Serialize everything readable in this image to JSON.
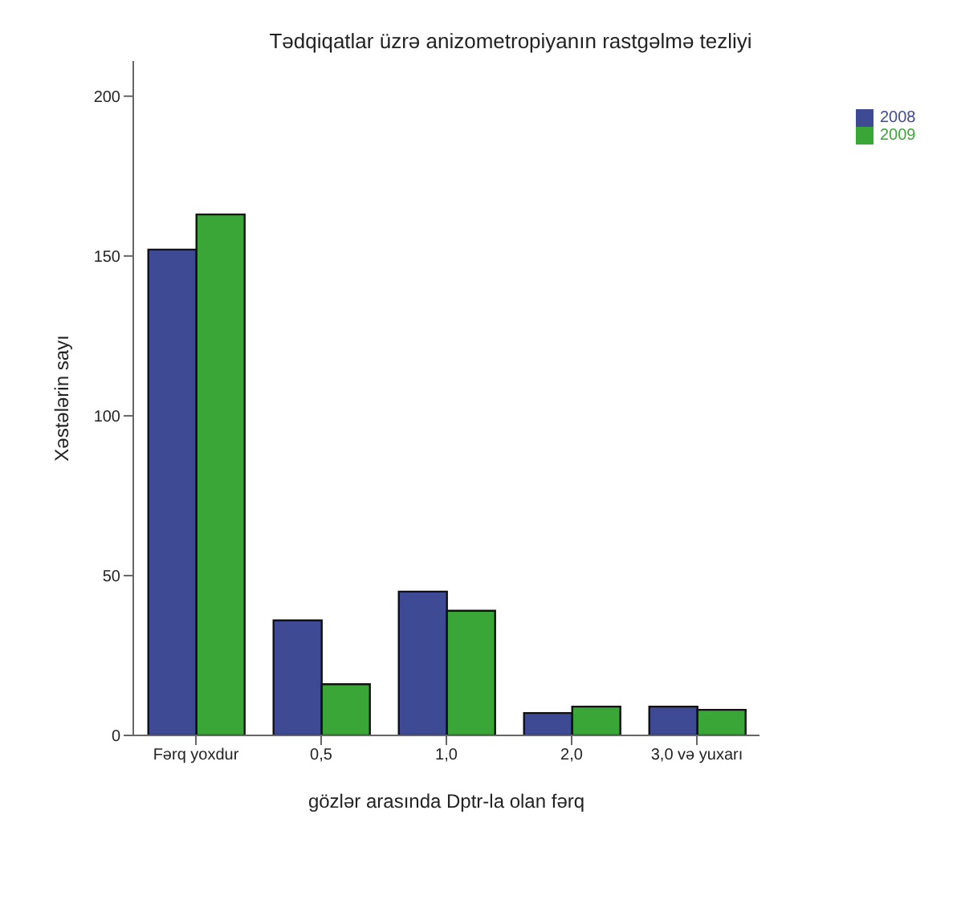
{
  "chart_data": {
    "type": "bar",
    "title": "Tədqiqatlar üzrə anizometropiyanın rastgəlmə tezliyi",
    "xlabel": "gözlər arasında Dptr-la olan fərq",
    "ylabel": "Xəstələrin sayı",
    "categories": [
      "Fərq yoxdur",
      "0,5",
      "1,0",
      "2,0",
      "3,0 və yuxarı"
    ],
    "series": [
      {
        "name": "2008",
        "color": "#3e4a94",
        "values": [
          152,
          36,
          45,
          7,
          9
        ]
      },
      {
        "name": "2009",
        "color": "#3aa638",
        "values": [
          163,
          16,
          39,
          9,
          8
        ]
      }
    ],
    "ylim": [
      0,
      211
    ],
    "yticks": [
      0,
      50,
      100,
      150,
      200
    ],
    "grid": false,
    "legend": "top right"
  }
}
